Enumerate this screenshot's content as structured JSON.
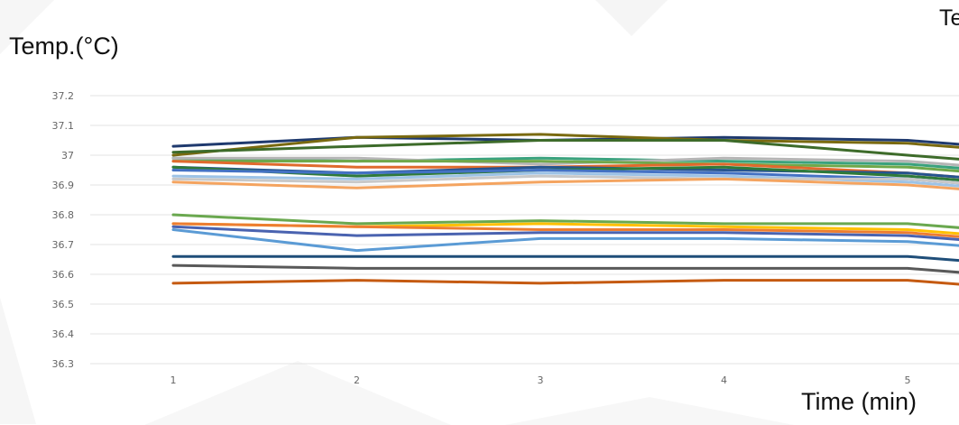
{
  "chart_data": {
    "type": "line",
    "title_partial": "Te",
    "ylabel": "Temp.(°C)",
    "xlabel": "Time (min)",
    "x": [
      1,
      2,
      3,
      4,
      5
    ],
    "xlim": [
      0.05,
      5.3
    ],
    "ylim": [
      36.3,
      37.2
    ],
    "yticks": [
      "37.2",
      "37.1",
      "37",
      "36.9",
      "36.8",
      "36.7",
      "36.6",
      "36.5",
      "36.4",
      "36.3"
    ],
    "xticks": [
      "1",
      "2",
      "3",
      "4",
      "5"
    ],
    "grid": true,
    "series": [
      {
        "color": "#1f3a6e",
        "values": [
          37.03,
          37.06,
          37.05,
          37.06,
          37.05
        ]
      },
      {
        "color": "#7a6a10",
        "values": [
          37.0,
          37.06,
          37.07,
          37.05,
          37.04
        ]
      },
      {
        "color": "#3d6b2a",
        "values": [
          37.01,
          37.03,
          37.05,
          37.05,
          37.0
        ]
      },
      {
        "color": "#3aa27d",
        "values": [
          36.99,
          36.98,
          36.99,
          36.98,
          36.97
        ]
      },
      {
        "color": "#b5b5b5",
        "values": [
          36.99,
          36.99,
          36.97,
          36.99,
          36.98
        ]
      },
      {
        "color": "#70a84a",
        "values": [
          36.98,
          36.98,
          36.98,
          36.97,
          36.96
        ]
      },
      {
        "color": "#e06a2d",
        "values": [
          36.98,
          36.96,
          36.96,
          36.97,
          36.94
        ]
      },
      {
        "color": "#26548f",
        "values": [
          36.96,
          36.94,
          36.96,
          36.95,
          36.94
        ]
      },
      {
        "color": "#2f7a3a",
        "values": [
          36.96,
          36.93,
          36.95,
          36.96,
          36.93
        ]
      },
      {
        "color": "#4472c4",
        "values": [
          36.95,
          36.94,
          36.95,
          36.94,
          36.92
        ]
      },
      {
        "color": "#9dc3e6",
        "values": [
          36.93,
          36.92,
          36.94,
          36.93,
          36.91
        ]
      },
      {
        "color": "#c8c8c8",
        "values": [
          36.92,
          36.91,
          36.93,
          36.92,
          36.92
        ]
      },
      {
        "color": "#f4a460",
        "values": [
          36.91,
          36.89,
          36.91,
          36.92,
          36.9
        ]
      },
      {
        "color": "#6aa84f",
        "values": [
          36.8,
          36.77,
          36.78,
          36.77,
          36.77
        ]
      },
      {
        "color": "#ffc000",
        "values": [
          36.77,
          36.76,
          36.77,
          36.76,
          36.75
        ]
      },
      {
        "color": "#ed7d31",
        "values": [
          36.77,
          36.76,
          36.75,
          36.75,
          36.74
        ]
      },
      {
        "color": "#4a63b0",
        "values": [
          36.76,
          36.73,
          36.74,
          36.74,
          36.73
        ]
      },
      {
        "color": "#5b9bd5",
        "values": [
          36.75,
          36.68,
          36.72,
          36.72,
          36.71
        ]
      },
      {
        "color": "#1f4e79",
        "values": [
          36.66,
          36.66,
          36.66,
          36.66,
          36.66
        ]
      },
      {
        "color": "#595959",
        "values": [
          36.63,
          36.62,
          36.62,
          36.62,
          36.62
        ]
      },
      {
        "color": "#c55a11",
        "values": [
          36.57,
          36.58,
          36.57,
          36.58,
          36.58
        ]
      }
    ]
  }
}
